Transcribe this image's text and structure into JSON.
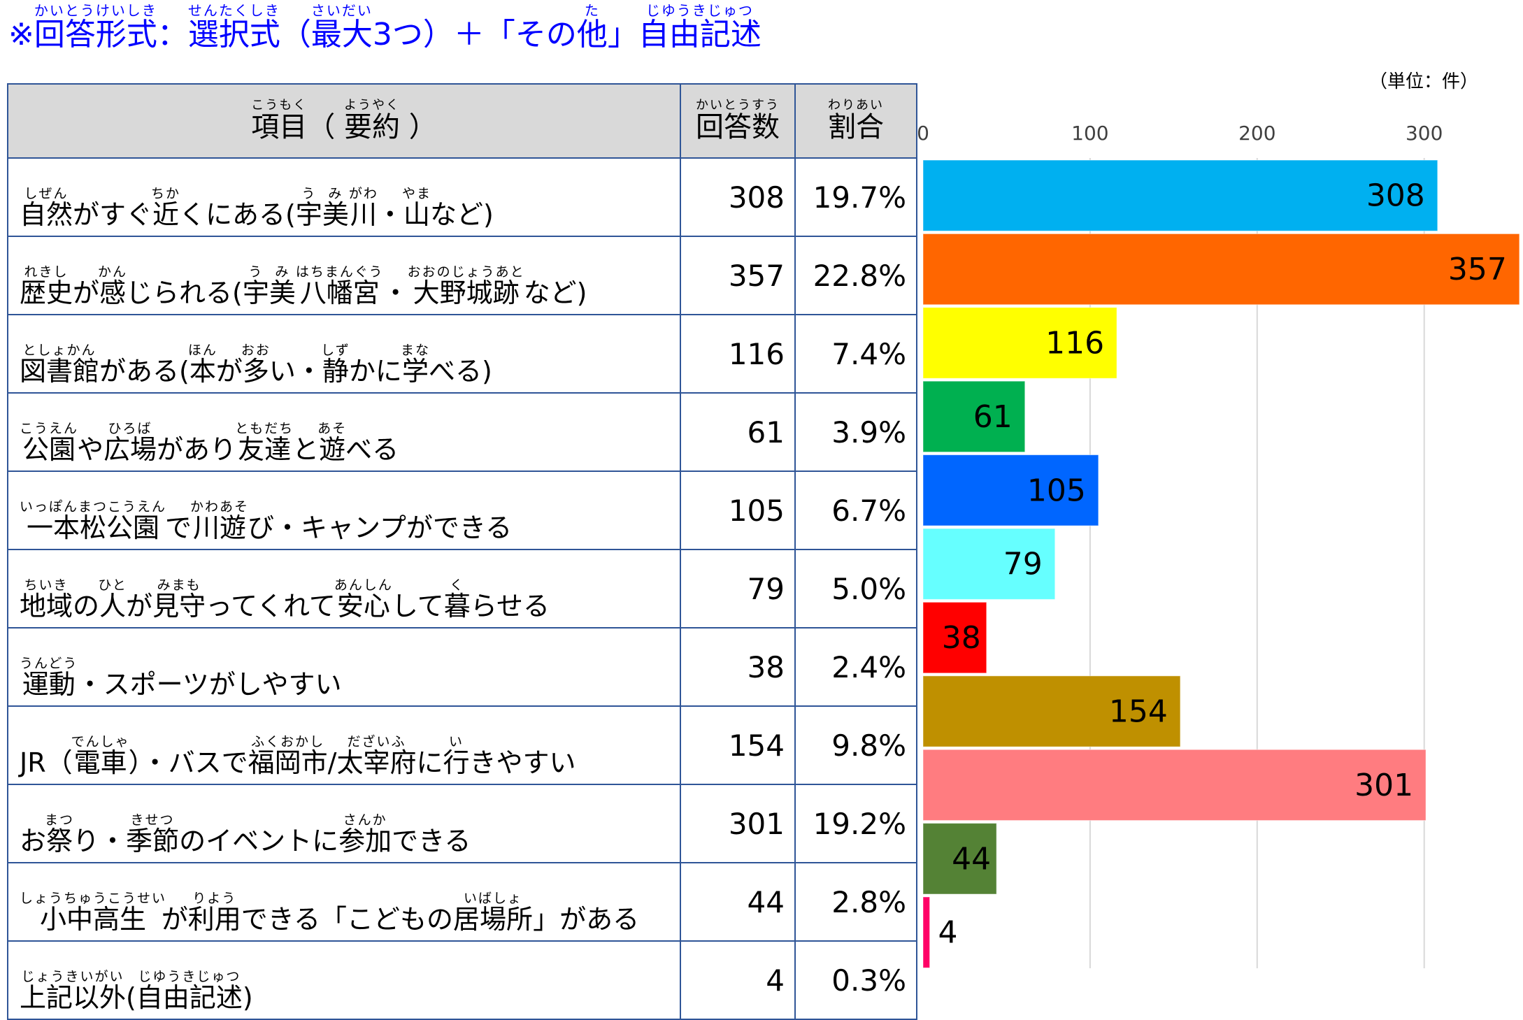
{
  "title_segments": [
    [
      "※",
      ""
    ],
    [
      "回答形式",
      "かいとうけいしき"
    ],
    [
      "：",
      ""
    ],
    [
      "選択式",
      "せんたくしき"
    ],
    [
      "（",
      ""
    ],
    [
      "最大",
      "さいだい"
    ],
    [
      "3つ）＋「その",
      ""
    ],
    [
      "他",
      "た"
    ],
    [
      "」",
      ""
    ],
    [
      "自由記述",
      "じゆうきじゅつ"
    ]
  ],
  "unit_label": "（単位：件）",
  "header": {
    "item": [
      [
        "項目",
        "こうもく"
      ],
      [
        "（ ",
        ""
      ],
      [
        "要約",
        "ようやく"
      ],
      [
        " ）",
        ""
      ]
    ],
    "count": [
      [
        "回答数",
        "かいとうすう"
      ]
    ],
    "ratio": [
      [
        "割合",
        "わりあい"
      ]
    ]
  },
  "colors": {
    "border": "#2F5597",
    "header_bg": "#D9D9D9",
    "title": "#0000FF",
    "grid": "#D9D9D9"
  },
  "rows": [
    {
      "segments": [
        [
          "自然",
          "しぜん"
        ],
        [
          "がすぐ",
          ""
        ],
        [
          "近",
          "ちか"
        ],
        [
          "くにある(",
          ""
        ],
        [
          "宇",
          "う"
        ],
        [
          "美",
          "み"
        ],
        [
          "川",
          "がわ"
        ],
        [
          "・",
          ""
        ],
        [
          "山",
          "やま"
        ],
        [
          "など)",
          ""
        ]
      ],
      "count": "308",
      "ratio": "19.7%"
    },
    {
      "segments": [
        [
          "歴史",
          "れきし"
        ],
        [
          "が",
          ""
        ],
        [
          "感",
          "かん"
        ],
        [
          "じられる(",
          ""
        ],
        [
          "宇",
          "う"
        ],
        [
          "美",
          "み"
        ],
        [
          "八幡宮",
          "はちまんぐう"
        ],
        [
          "・",
          ""
        ],
        [
          "大野城跡",
          "おおのじょうあと"
        ],
        [
          "など)",
          ""
        ]
      ],
      "count": "357",
      "ratio": "22.8%"
    },
    {
      "segments": [
        [
          "図書館",
          "としょかん"
        ],
        [
          "がある(",
          ""
        ],
        [
          "本",
          "ほん"
        ],
        [
          "が",
          ""
        ],
        [
          "多",
          "おお"
        ],
        [
          "い・",
          ""
        ],
        [
          "静",
          "しず"
        ],
        [
          "かに",
          ""
        ],
        [
          "学",
          "まな"
        ],
        [
          "べる)",
          ""
        ]
      ],
      "count": "116",
      "ratio": "7.4%"
    },
    {
      "segments": [
        [
          "公園",
          "こうえん"
        ],
        [
          "や",
          ""
        ],
        [
          "広場",
          "ひろば"
        ],
        [
          "があり",
          ""
        ],
        [
          "友達",
          "ともだち"
        ],
        [
          "と",
          ""
        ],
        [
          "遊",
          "あそ"
        ],
        [
          "べる",
          ""
        ]
      ],
      "count": "61",
      "ratio": "3.9%"
    },
    {
      "segments": [
        [
          "一本松公園",
          "いっぽんまつこうえん"
        ],
        [
          "で",
          ""
        ],
        [
          "川遊",
          "かわあそ"
        ],
        [
          "び・キャンプができる",
          ""
        ]
      ],
      "count": "105",
      "ratio": "6.7%"
    },
    {
      "segments": [
        [
          "地域",
          "ちいき"
        ],
        [
          "の",
          ""
        ],
        [
          "人",
          "ひと"
        ],
        [
          "が",
          ""
        ],
        [
          "見守",
          "みまも"
        ],
        [
          "ってくれて",
          ""
        ],
        [
          "安心",
          "あんしん"
        ],
        [
          "して",
          ""
        ],
        [
          "暮",
          "く"
        ],
        [
          "らせる",
          ""
        ]
      ],
      "count": "79",
      "ratio": "5.0%"
    },
    {
      "segments": [
        [
          "運動",
          "うんどう"
        ],
        [
          "・スポーツがしやすい",
          ""
        ]
      ],
      "count": "38",
      "ratio": "2.4%"
    },
    {
      "segments": [
        [
          "JR（",
          ""
        ],
        [
          "電車",
          "でんしゃ"
        ],
        [
          "）・バスで",
          ""
        ],
        [
          "福岡市",
          "ふくおかし"
        ],
        [
          "/",
          ""
        ],
        [
          "太宰府",
          "だざいふ"
        ],
        [
          "に",
          ""
        ],
        [
          "行",
          "い"
        ],
        [
          "きやすい",
          ""
        ]
      ],
      "count": "154",
      "ratio": "9.8%"
    },
    {
      "segments": [
        [
          "お",
          ""
        ],
        [
          "祭",
          "まつ"
        ],
        [
          "り・",
          ""
        ],
        [
          "季節",
          "きせつ"
        ],
        [
          "のイベントに",
          ""
        ],
        [
          "参加",
          "さんか"
        ],
        [
          "できる",
          ""
        ]
      ],
      "count": "301",
      "ratio": "19.2%"
    },
    {
      "segments": [
        [
          "小中高生",
          "しょうちゅうこうせい"
        ],
        [
          "が",
          ""
        ],
        [
          "利用",
          "りよう"
        ],
        [
          "できる「こどもの",
          ""
        ],
        [
          "居場所",
          "いばしょ"
        ],
        [
          "」がある",
          ""
        ]
      ],
      "count": "44",
      "ratio": "2.8%"
    },
    {
      "segments": [
        [
          "上記以外",
          "じょうきいがい"
        ],
        [
          "(",
          ""
        ],
        [
          "自由記述",
          "じゆうきじゅつ"
        ],
        [
          ")",
          ""
        ]
      ],
      "count": "4",
      "ratio": "0.3%"
    }
  ],
  "chart_data": {
    "type": "bar",
    "orientation": "horizontal",
    "categories": [
      "自然がすぐ近くにある(宇美川・山など)",
      "歴史が感じられる(宇美八幡宮・大野城跡など)",
      "図書館がある(本が多い・静かに学べる)",
      "公園や広場があり友達と遊べる",
      "一本松公園で川遊び・キャンプができる",
      "地域の人が見守ってくれて安心して暮らせる",
      "運動・スポーツがしやすい",
      "JR(電車)・バスで福岡市/太宰府に行きやすい",
      "お祭り・季節のイベントに参加できる",
      "小中高生が利用できる「こどもの居場所」がある",
      "上記以外(自由記述)"
    ],
    "values": [
      308,
      357,
      116,
      61,
      105,
      79,
      38,
      154,
      301,
      44,
      4
    ],
    "bar_colors": [
      "#00B0F0",
      "#FF6600",
      "#FFFF00",
      "#00B050",
      "#0066FF",
      "#66FFFF",
      "#FF0000",
      "#BF9000",
      "#FF7C80",
      "#548235",
      "#FF0066"
    ],
    "xlim": [
      0,
      357
    ],
    "xticks": [
      "0",
      "100",
      "200",
      "300"
    ],
    "grid": true,
    "data_labels": true
  }
}
